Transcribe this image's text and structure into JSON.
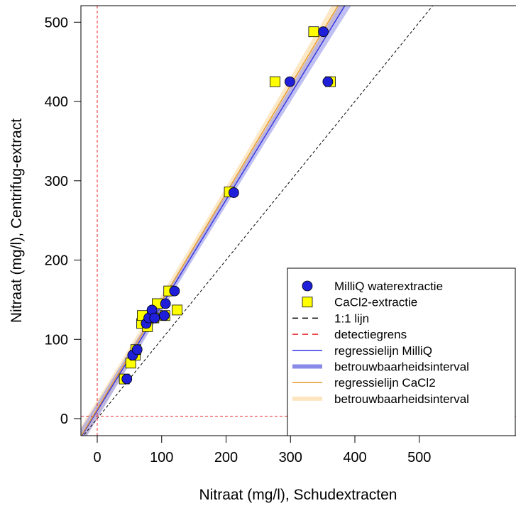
{
  "chart_data": {
    "type": "scatter",
    "xlabel": "Nitraat (mg/l), Schudextracten",
    "ylabel": "Nitraat (mg/l), Centrifug-extract",
    "xlim": [
      -20,
      520
    ],
    "ylim": [
      -20,
      520
    ],
    "xticks": [
      0,
      100,
      200,
      300,
      400,
      500
    ],
    "yticks": [
      0,
      100,
      200,
      300,
      400,
      500
    ],
    "xtick_labels": [
      "0",
      "100",
      "200",
      "300",
      "400",
      "500"
    ],
    "ytick_labels": [
      "0",
      "100",
      "200",
      "300",
      "400",
      "500"
    ],
    "grid": false,
    "legend_position": "bottom-right",
    "detection_limit": {
      "x": 0,
      "y": 3
    },
    "series": [
      {
        "name": "MilliQ waterextractie",
        "marker": "circle",
        "color": "#1f1fd9",
        "points": [
          [
            46,
            50
          ],
          [
            55,
            80
          ],
          [
            62,
            87
          ],
          [
            76,
            120
          ],
          [
            80,
            127
          ],
          [
            85,
            137
          ],
          [
            89,
            127
          ],
          [
            104,
            130
          ],
          [
            106,
            145
          ],
          [
            120,
            161
          ],
          [
            212,
            285
          ],
          [
            299,
            425
          ],
          [
            351,
            488
          ],
          [
            358,
            425
          ]
        ]
      },
      {
        "name": "CaCl2-extractie",
        "marker": "square",
        "color": "#ffff00",
        "points": [
          [
            42,
            50
          ],
          [
            52,
            70
          ],
          [
            59,
            80
          ],
          [
            60,
            87
          ],
          [
            69,
            120
          ],
          [
            70,
            130
          ],
          [
            78,
            116
          ],
          [
            88,
            127
          ],
          [
            93,
            145
          ],
          [
            105,
            130
          ],
          [
            111,
            161
          ],
          [
            124,
            137
          ],
          [
            205,
            286
          ],
          [
            276,
            425
          ],
          [
            336,
            488
          ],
          [
            362,
            425
          ]
        ]
      }
    ],
    "lines": [
      {
        "name": "1:1 lijn",
        "color": "#000000",
        "style": "dashed"
      },
      {
        "name": "detectiegrens",
        "color": "#e8262a",
        "style": "dashed"
      },
      {
        "name": "regressielijn MilliQ",
        "color": "#3232e6",
        "style": "solid",
        "intercept": 10,
        "slope": 1.329
      },
      {
        "name": "betrouwbaarheidsinterval",
        "color": "#8a8ae8",
        "style": "band"
      },
      {
        "name": "regressielijn CaCl2",
        "color": "#e89a2a",
        "style": "solid",
        "intercept": 12,
        "slope": 1.361
      },
      {
        "name": "betrouwbaarheidsinterval",
        "color": "#fde5c0",
        "style": "band"
      }
    ]
  }
}
